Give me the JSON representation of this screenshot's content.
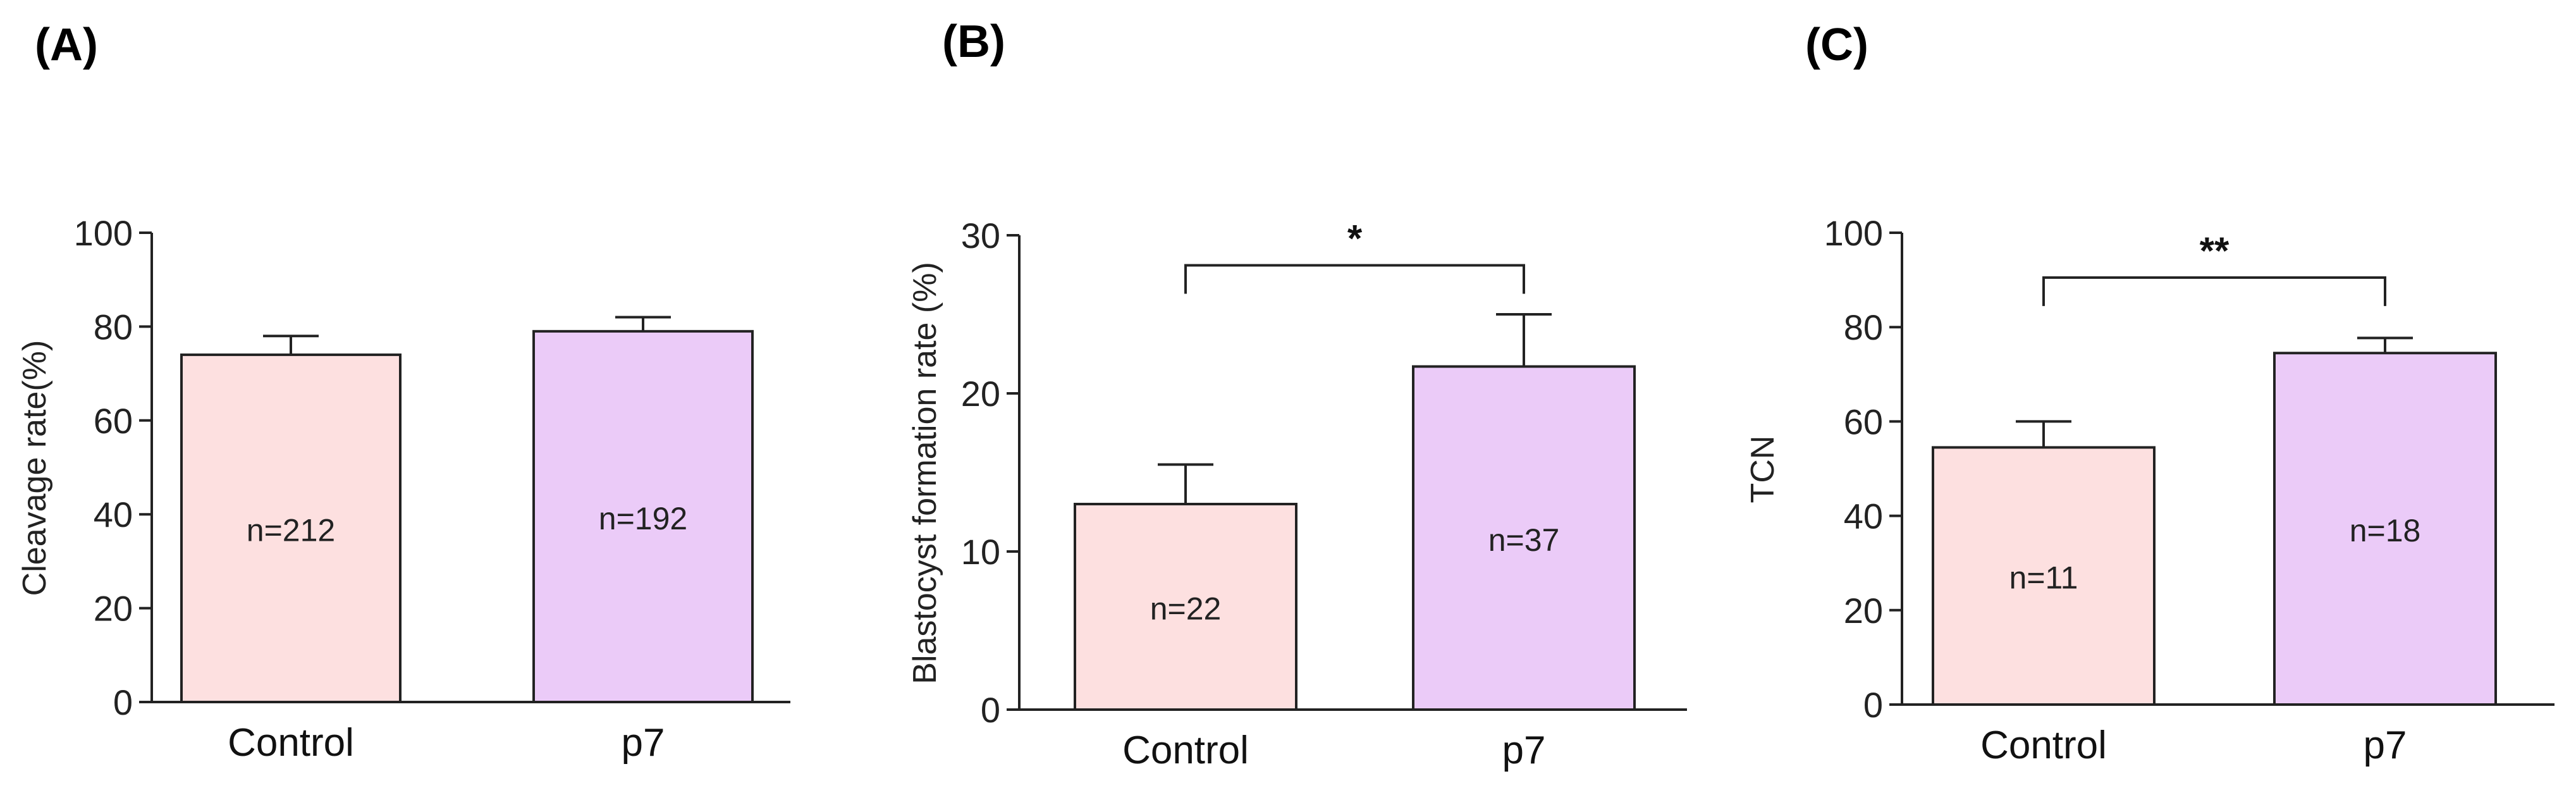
{
  "chart_data": [
    {
      "type": "bar",
      "panel": "(A)",
      "ylabel": "Cleavage rate(%)",
      "ylim": [
        0,
        100
      ],
      "yticks": [
        0,
        20,
        40,
        60,
        80,
        100
      ],
      "categories": [
        "Control",
        "p7"
      ],
      "values": [
        74,
        79
      ],
      "errors": [
        4,
        3
      ],
      "n_labels": [
        "n=212",
        "n=192"
      ],
      "bar_colors": [
        "#fde0e0",
        "#ebcbf8"
      ],
      "significance": null
    },
    {
      "type": "bar",
      "panel": "(B)",
      "ylabel": "Blastocyst formation rate (%)",
      "ylim": [
        0,
        30
      ],
      "yticks": [
        0,
        10,
        20,
        30
      ],
      "categories": [
        "Control",
        "p7"
      ],
      "values": [
        13,
        21.7
      ],
      "errors": [
        2.5,
        3.3
      ],
      "n_labels": [
        "n=22",
        "n=37"
      ],
      "bar_colors": [
        "#fde0e0",
        "#ebcbf8"
      ],
      "significance": {
        "label": "*",
        "bracket_value": 28.1
      }
    },
    {
      "type": "bar",
      "panel": "(C)",
      "ylabel": "TCN",
      "ylim": [
        0,
        100
      ],
      "yticks": [
        0,
        20,
        40,
        60,
        80,
        100
      ],
      "categories": [
        "Control",
        "p7"
      ],
      "values": [
        54.5,
        74.5
      ],
      "errors": [
        5.5,
        3.2
      ],
      "n_labels": [
        "n=11",
        "n=18"
      ],
      "bar_colors": [
        "#fde0e0",
        "#ebcbf8"
      ],
      "significance": {
        "label": "**",
        "bracket_value": 90.5
      }
    }
  ]
}
